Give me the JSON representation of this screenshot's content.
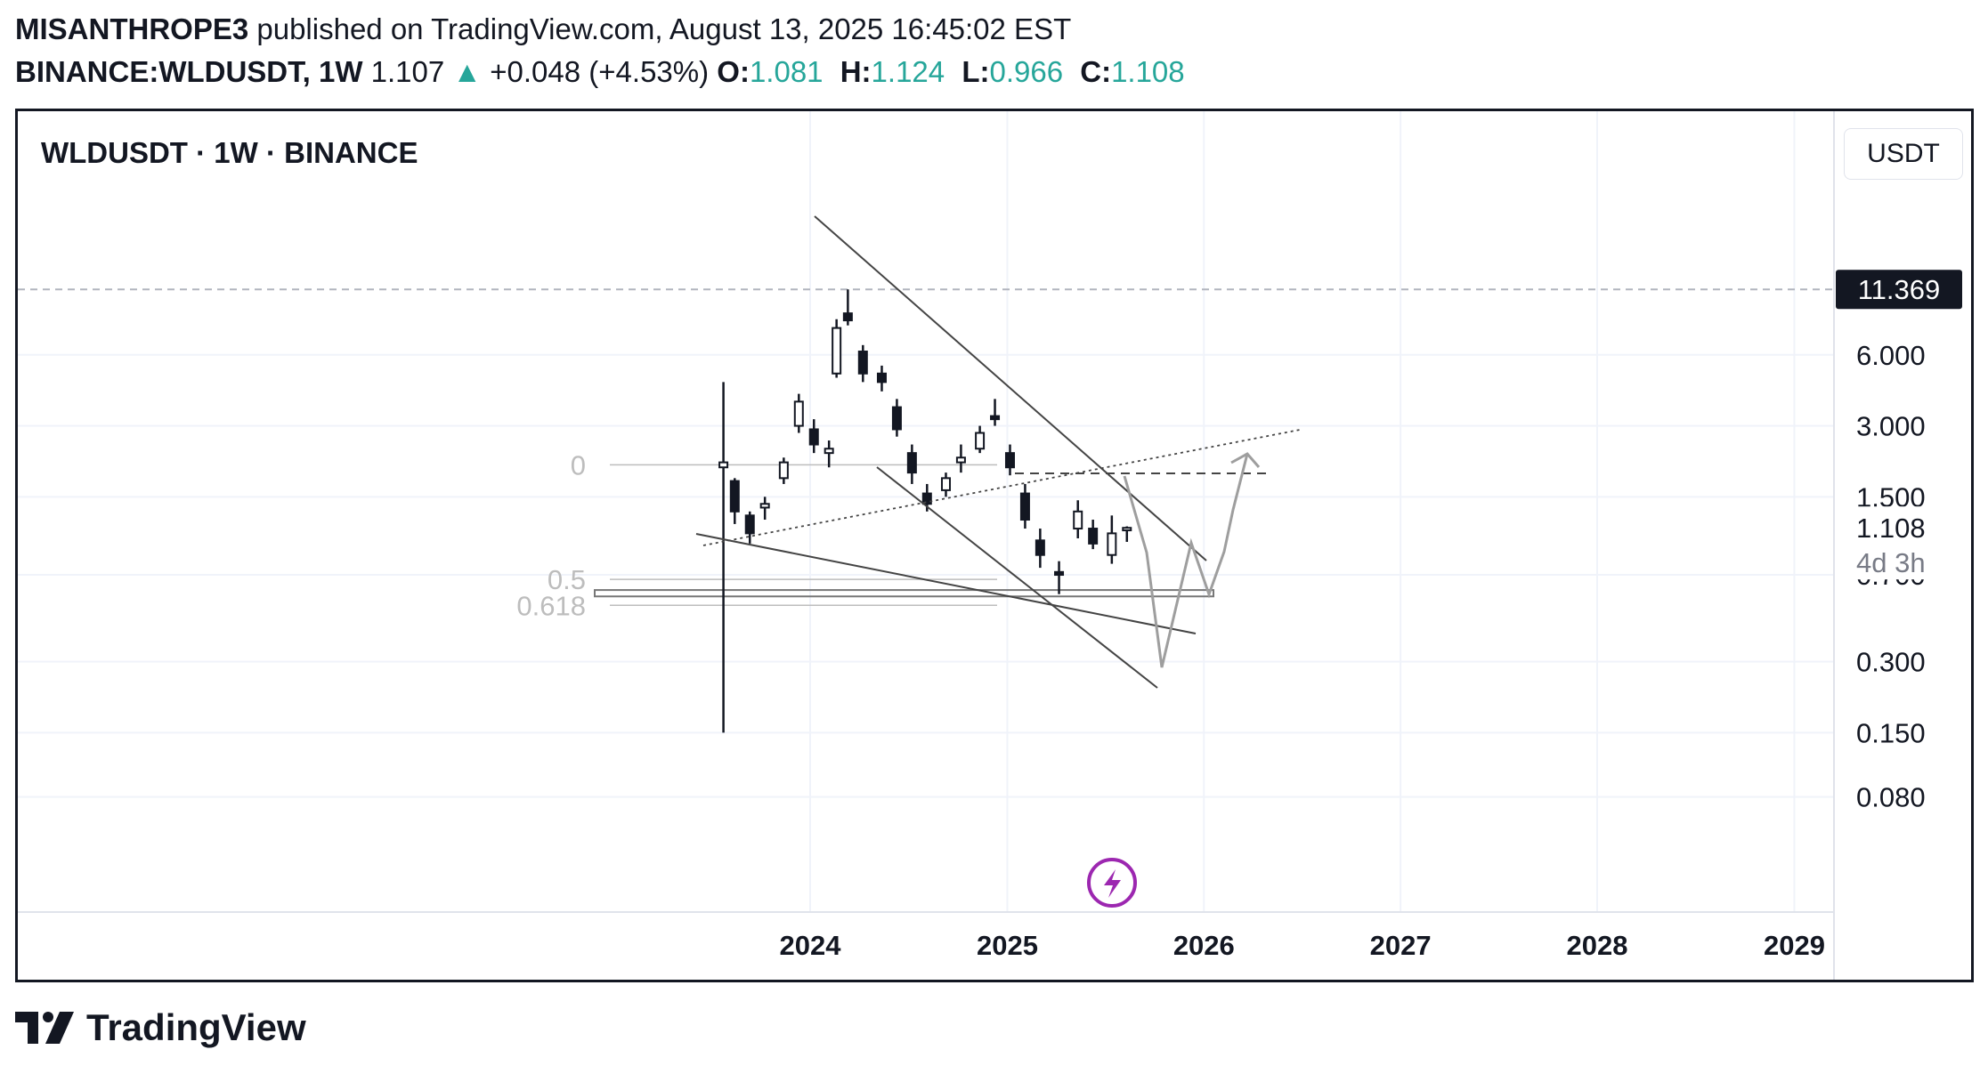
{
  "header": {
    "author": "MISANTHROPE3",
    "published": "published on TradingView.com, August 13, 2025 16:45:02 EST",
    "symbol": "BINANCE:WLDUSDT, 1W",
    "last": "1.107",
    "change": "+0.048 (+4.53%)",
    "o_label": "O:",
    "o_val": "1.081",
    "h_label": "H:",
    "h_val": "1.124",
    "l_label": "L:",
    "l_val": "0.966",
    "c_label": "C:",
    "c_val": "1.108"
  },
  "chart": {
    "title": "WLDUSDT · 1W · BINANCE",
    "currency": "USDT"
  },
  "brand": "TradingView",
  "colors": {
    "up": "#26a69a",
    "candle": "#131722",
    "drawing": "#555555",
    "projection": "#9e9e9e",
    "fib": "#bdbdbd",
    "lightning": "#9c27b0"
  },
  "chart_data": {
    "type": "candlestick",
    "timeframe": "1W",
    "scale": "log",
    "x_ticks": [
      "2024",
      "2025",
      "2026",
      "2027",
      "2028",
      "2029"
    ],
    "y_ticks": [
      "6.000",
      "3.000",
      "1.500",
      "0.700",
      "0.300",
      "0.150",
      "0.080"
    ],
    "price_labels": {
      "high_marker": "11.369",
      "current": "1.108",
      "countdown": "4d 3h"
    },
    "fib_levels": [
      {
        "label": "0",
        "price": 2.05
      },
      {
        "label": "0.5",
        "price": 0.67
      },
      {
        "label": "0.618",
        "price": 0.52
      }
    ],
    "series": [
      {
        "date": "2023-07-24",
        "open": 2.0,
        "high": 4.6,
        "low": 0.15,
        "close": 2.1
      },
      {
        "date": "2023-08-14",
        "open": 1.75,
        "high": 1.8,
        "low": 1.15,
        "close": 1.3
      },
      {
        "date": "2023-09-11",
        "open": 1.25,
        "high": 1.3,
        "low": 0.95,
        "close": 1.05
      },
      {
        "date": "2023-10-09",
        "open": 1.35,
        "high": 1.5,
        "low": 1.2,
        "close": 1.4
      },
      {
        "date": "2023-11-13",
        "open": 1.8,
        "high": 2.2,
        "low": 1.7,
        "close": 2.1
      },
      {
        "date": "2023-12-11",
        "open": 3.0,
        "high": 4.1,
        "low": 2.8,
        "close": 3.8
      },
      {
        "date": "2024-01-08",
        "open": 2.9,
        "high": 3.2,
        "low": 2.3,
        "close": 2.5
      },
      {
        "date": "2024-02-05",
        "open": 2.3,
        "high": 2.6,
        "low": 2.0,
        "close": 2.4
      },
      {
        "date": "2024-02-19",
        "open": 5.0,
        "high": 8.5,
        "low": 4.8,
        "close": 7.8
      },
      {
        "date": "2024-03-11",
        "open": 9.0,
        "high": 11.37,
        "low": 8.0,
        "close": 8.4
      },
      {
        "date": "2024-04-08",
        "open": 6.2,
        "high": 6.6,
        "low": 4.6,
        "close": 5.0
      },
      {
        "date": "2024-05-13",
        "open": 5.0,
        "high": 5.4,
        "low": 4.2,
        "close": 4.6
      },
      {
        "date": "2024-06-10",
        "open": 3.6,
        "high": 3.9,
        "low": 2.7,
        "close": 2.9
      },
      {
        "date": "2024-07-08",
        "open": 2.3,
        "high": 2.5,
        "low": 1.7,
        "close": 1.9
      },
      {
        "date": "2024-08-05",
        "open": 1.55,
        "high": 1.7,
        "low": 1.3,
        "close": 1.4
      },
      {
        "date": "2024-09-09",
        "open": 1.6,
        "high": 1.9,
        "low": 1.5,
        "close": 1.8
      },
      {
        "date": "2024-10-07",
        "open": 2.1,
        "high": 2.5,
        "low": 1.9,
        "close": 2.2
      },
      {
        "date": "2024-11-11",
        "open": 2.4,
        "high": 3.0,
        "low": 2.3,
        "close": 2.8
      },
      {
        "date": "2024-12-09",
        "open": 3.3,
        "high": 3.9,
        "low": 3.0,
        "close": 3.2
      },
      {
        "date": "2025-01-06",
        "open": 2.3,
        "high": 2.5,
        "low": 1.85,
        "close": 2.0
      },
      {
        "date": "2025-02-03",
        "open": 1.55,
        "high": 1.7,
        "low": 1.1,
        "close": 1.2
      },
      {
        "date": "2025-03-03",
        "open": 0.98,
        "high": 1.1,
        "low": 0.75,
        "close": 0.85
      },
      {
        "date": "2025-04-07",
        "open": 0.72,
        "high": 0.8,
        "low": 0.58,
        "close": 0.7
      },
      {
        "date": "2025-05-12",
        "open": 1.1,
        "high": 1.45,
        "low": 1.0,
        "close": 1.3
      },
      {
        "date": "2025-06-09",
        "open": 1.1,
        "high": 1.2,
        "low": 0.9,
        "close": 0.95
      },
      {
        "date": "2025-07-14",
        "open": 0.85,
        "high": 1.25,
        "low": 0.78,
        "close": 1.05
      },
      {
        "date": "2025-08-11",
        "open": 1.081,
        "high": 1.124,
        "low": 0.966,
        "close": 1.108
      }
    ]
  }
}
